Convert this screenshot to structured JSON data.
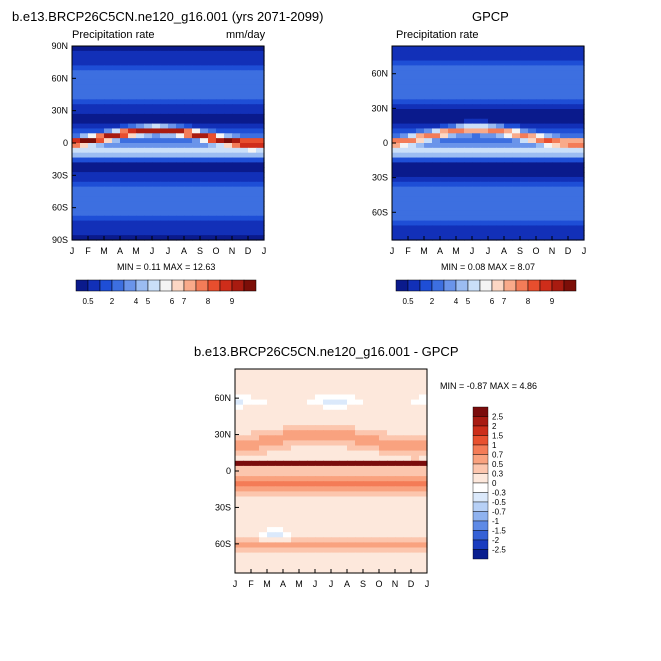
{
  "chart_data": [
    {
      "type": "heatmap",
      "title": "b.e13.BRCP26C5CN.ne120_g16.001 (yrs 2071-2099)",
      "subtitle_left": "Precipitation rate",
      "subtitle_right": "mm/day",
      "x_tick_labels": [
        "J",
        "F",
        "M",
        "A",
        "M",
        "J",
        "J",
        "A",
        "S",
        "O",
        "N",
        "D",
        "J"
      ],
      "y_tick_labels": [
        "90N",
        "60N",
        "30N",
        "0",
        "30S",
        "60S",
        "90S"
      ],
      "stats": "MIN =  0.11 MAX =  12.63",
      "colorbar_labels": [
        "0.5",
        "2",
        "4",
        "5",
        "6",
        "7",
        "8",
        "9"
      ],
      "colorbar_colors": [
        "#0a1a8c",
        "#1230b8",
        "#1e4ed6",
        "#3d6fe0",
        "#6a94ea",
        "#9bbcf2",
        "#cadff9",
        "#f4f4f4",
        "#fcd7c4",
        "#f9aa8a",
        "#f37c58",
        "#e84e2e",
        "#cf2d1a",
        "#a91b10",
        "#7c0e08"
      ],
      "precipitation_range_mm_day": [
        0.11,
        12.63
      ]
    },
    {
      "type": "heatmap",
      "title": "GPCP",
      "subtitle_left": "Precipitation rate",
      "x_tick_labels": [
        "J",
        "F",
        "M",
        "A",
        "M",
        "J",
        "J",
        "A",
        "S",
        "O",
        "N",
        "D",
        "J"
      ],
      "y_tick_labels": [
        "60N",
        "30N",
        "0",
        "30S",
        "60S"
      ],
      "stats": "MIN =  0.08 MAX =  8.07",
      "colorbar_labels": [
        "0.5",
        "2",
        "4",
        "5",
        "6",
        "7",
        "8",
        "9"
      ],
      "precipitation_range_mm_day": [
        0.08,
        8.07
      ]
    },
    {
      "type": "heatmap",
      "title": "b.e13.BRCP26C5CN.ne120_g16.001 - GPCP",
      "x_tick_labels": [
        "J",
        "F",
        "M",
        "A",
        "M",
        "J",
        "J",
        "A",
        "S",
        "O",
        "N",
        "D",
        "J"
      ],
      "y_tick_labels": [
        "60N",
        "30N",
        "0",
        "30S",
        "60S"
      ],
      "stats": "MIN = -0.87 MAX =  4.86",
      "colorbar_labels": [
        "2.5",
        "2",
        "1.5",
        "1",
        "0.7",
        "0.5",
        "0.3",
        "0",
        "-0.3",
        "-0.5",
        "-0.7",
        "-1",
        "-1.5",
        "-2",
        "-2.5"
      ],
      "colorbar_colors": [
        "#7a0c0c",
        "#a81b12",
        "#cc2e1a",
        "#e8512f",
        "#f47c57",
        "#f9a27f",
        "#fcc6ae",
        "#fde8dc",
        "#ffffff",
        "#dbe9fb",
        "#b7d0f6",
        "#8fb2ef",
        "#5e8ae6",
        "#3561d6",
        "#1a3cbf",
        "#0a1f8f"
      ],
      "difference_range_mm_day": [
        -0.87,
        4.86
      ]
    }
  ]
}
